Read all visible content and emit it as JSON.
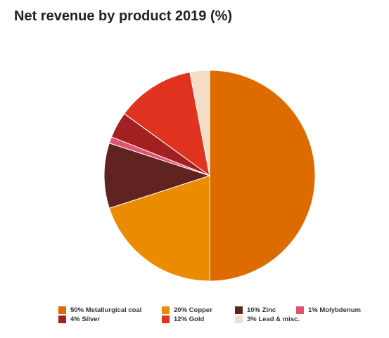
{
  "chart_data": {
    "type": "pie",
    "title": "Net revenue by product 2019 (%)",
    "slices": [
      {
        "label": "50% Metallurgical coal",
        "value": 50,
        "color": "#DD6B00"
      },
      {
        "label": "20% Copper",
        "value": 20,
        "color": "#EB8C00"
      },
      {
        "label": "10% Zinc",
        "value": 10,
        "color": "#602320"
      },
      {
        "label": "1% Molybdenum",
        "value": 1,
        "color": "#E05470"
      },
      {
        "label": "4% Silver",
        "value": 4,
        "color": "#A32020"
      },
      {
        "label": "12% Gold",
        "value": 12,
        "color": "#E03421"
      },
      {
        "label": "3% Lead & misc.",
        "value": 3,
        "color": "#F5DCC7"
      }
    ],
    "legend_position": "bottom"
  }
}
